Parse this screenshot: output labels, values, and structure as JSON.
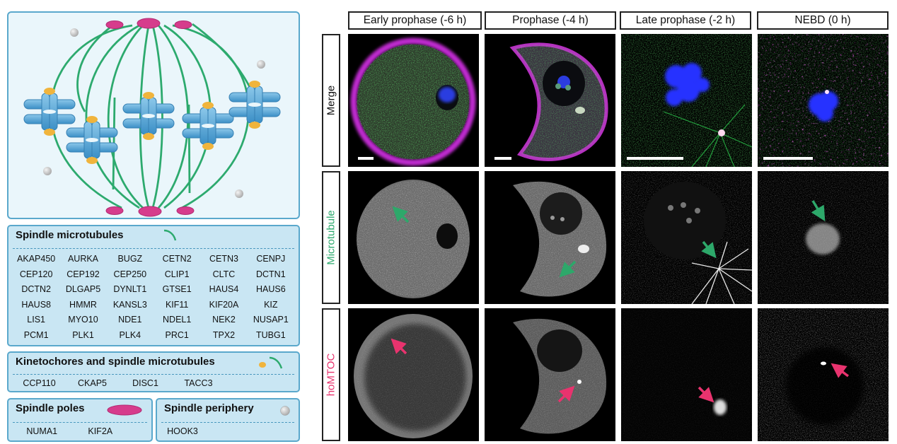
{
  "legend": [
    {
      "title": "Spindle microtubules",
      "columns": 6,
      "genes": [
        "AKAP450",
        "AURKA",
        "BUGZ",
        "CETN2",
        "CETN3",
        "CENPJ",
        "CEP120",
        "CEP192",
        "CEP250",
        "CLIP1",
        "CLTC",
        "DCTN1",
        "DCTN2",
        "DLGAP5",
        "DYNLT1",
        "GTSE1",
        "HAUS4",
        "HAUS6",
        "HAUS8",
        "HMMR",
        "KANSL3",
        "KIF11",
        "KIF20A",
        "KIZ",
        "LIS1",
        "MYO10",
        "NDE1",
        "NDEL1",
        "NEK2",
        "NUSAP1",
        "PCM1",
        "PLK1",
        "PLK4",
        "PRC1",
        "TPX2",
        "TUBG1"
      ]
    },
    {
      "title": "Kinetochores and spindle microtubules",
      "columns": 4,
      "genes": [
        "CCP110",
        "CKAP5",
        "DISC1",
        "TACC3"
      ]
    },
    {
      "title": "Spindle poles",
      "columns": 2,
      "genes": [
        "NUMA1",
        "KIF2A"
      ]
    },
    {
      "title": "Spindle periphery",
      "columns": 1,
      "genes": [
        "HOOK3"
      ]
    }
  ],
  "microscopy": {
    "columns": [
      "Early prophase (-6 h)",
      "Prophase (-4 h)",
      "Late prophase (-2 h)",
      "NEBD (0 h)"
    ],
    "rows": [
      "Merge",
      "Microtubule",
      "hoMTOC"
    ]
  },
  "colors": {
    "microtubule": "#2daa6e",
    "kinetochore": "#f0b43c",
    "chromosome": "#4aa3d6",
    "pole": "#d63c8c",
    "periphery": "#bbbbbb",
    "legend_bg": "#c9e6f3",
    "legend_border": "#5aa8cc",
    "microtubule_label": "#2daa6e",
    "homtoc_label": "#e8336e",
    "green_arrow": "#2da86a",
    "red_arrow": "#e8336e"
  }
}
